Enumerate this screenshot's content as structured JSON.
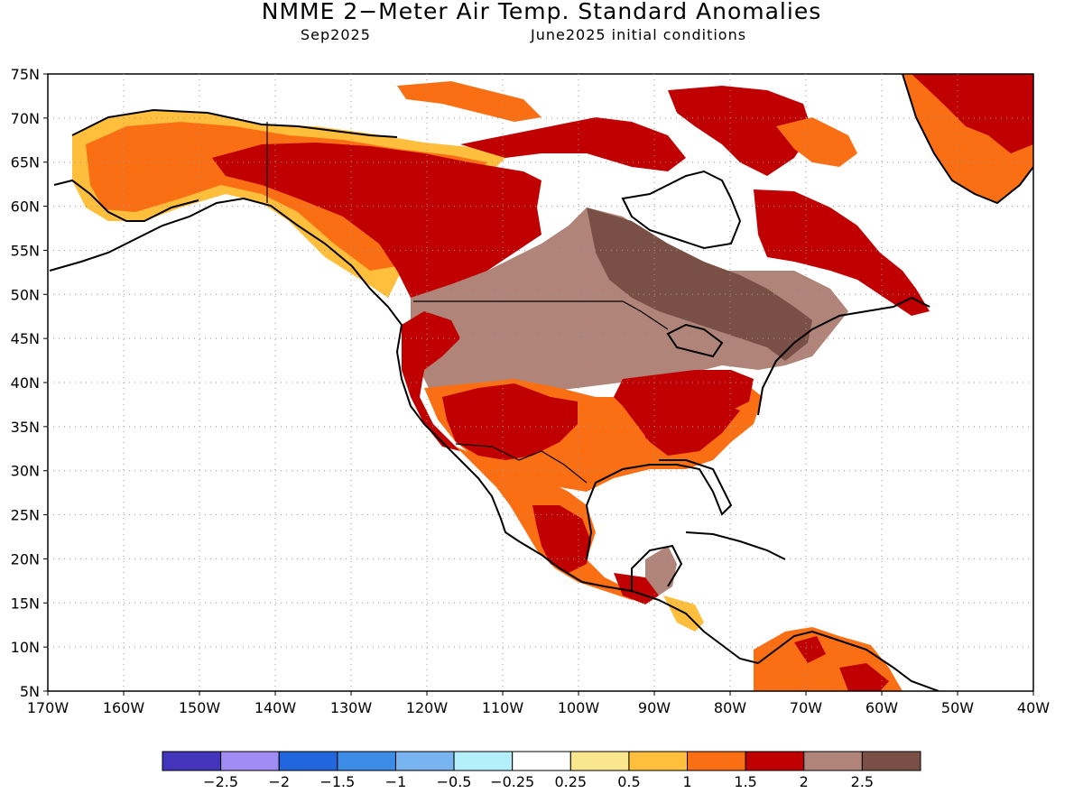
{
  "header": {
    "title": "NMME 2−Meter Air Temp. Standard Anomalies",
    "valid_month": "Sep2025",
    "initial_conditions": "June2025 initial conditions"
  },
  "axes": {
    "lat_labels": [
      "75N",
      "70N",
      "65N",
      "60N",
      "55N",
      "50N",
      "45N",
      "40N",
      "35N",
      "30N",
      "25N",
      "20N",
      "15N",
      "10N",
      "5N"
    ],
    "lon_labels": [
      "170W",
      "160W",
      "150W",
      "140W",
      "130W",
      "120W",
      "110W",
      "100W",
      "90W",
      "80W",
      "70W",
      "60W",
      "50W",
      "40W"
    ]
  },
  "colorbar": {
    "colors": [
      "#4433bb",
      "#a08cf5",
      "#2266dd",
      "#3c8ce6",
      "#78b4f0",
      "#b4f0fa",
      "#ffffff",
      "#fae68c",
      "#ffbe3c",
      "#fa6e14",
      "#c00000",
      "#b08478",
      "#7a5046"
    ],
    "labels": [
      "−2.5",
      "−2",
      "−1.5",
      "−1",
      "−0.5",
      "−0.25",
      "0.25",
      "0.5",
      "1",
      "1.5",
      "2",
      "2.5"
    ]
  },
  "legend_colors": {
    "strong_warm": "#c00000",
    "warm": "#fa6e14",
    "mild_warm": "#ffbe3c",
    "weak_warm": "#fae68c",
    "brown_light": "#b08478",
    "brown_dark": "#7a5046",
    "coast": "#000000"
  }
}
